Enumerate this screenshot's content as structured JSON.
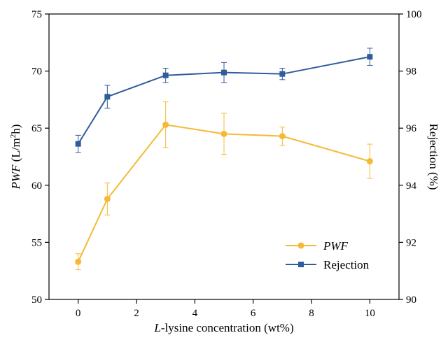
{
  "chart_data": {
    "type": "line",
    "xlabel_italic": "L",
    "xlabel_rest": "-lysine concentration (wt%)",
    "ylabel_left_italic": "PWF",
    "ylabel_left_rest": " (L/m",
    "ylabel_left_sup": "2",
    "ylabel_left_end": "h)",
    "ylabel_right": "Rejection (%)",
    "xlim": [
      -1,
      11
    ],
    "x_ticks": [
      0,
      2,
      4,
      6,
      8,
      10
    ],
    "ylim_left": [
      50,
      75
    ],
    "y_ticks_left": [
      50,
      55,
      60,
      65,
      70,
      75
    ],
    "ylim_right": [
      90,
      100
    ],
    "y_ticks_right": [
      90,
      92,
      94,
      96,
      98,
      100
    ],
    "legend_position": "lower-right",
    "grid": false,
    "series": [
      {
        "name": "PWF",
        "axis": "left",
        "color": "#f5b935",
        "marker": "circle",
        "x": [
          0,
          1,
          3,
          5,
          7,
          10
        ],
        "y": [
          53.3,
          58.8,
          65.3,
          64.5,
          64.3,
          62.1
        ],
        "err": [
          0.7,
          1.4,
          2.0,
          1.8,
          0.8,
          1.5
        ]
      },
      {
        "name": "Rejection",
        "axis": "right",
        "color": "#2f5c9a",
        "marker": "square",
        "x": [
          0,
          1,
          3,
          5,
          7,
          10
        ],
        "y": [
          95.45,
          97.1,
          97.85,
          97.95,
          97.9,
          98.5
        ],
        "err": [
          0.3,
          0.4,
          0.25,
          0.35,
          0.2,
          0.3
        ]
      }
    ]
  }
}
